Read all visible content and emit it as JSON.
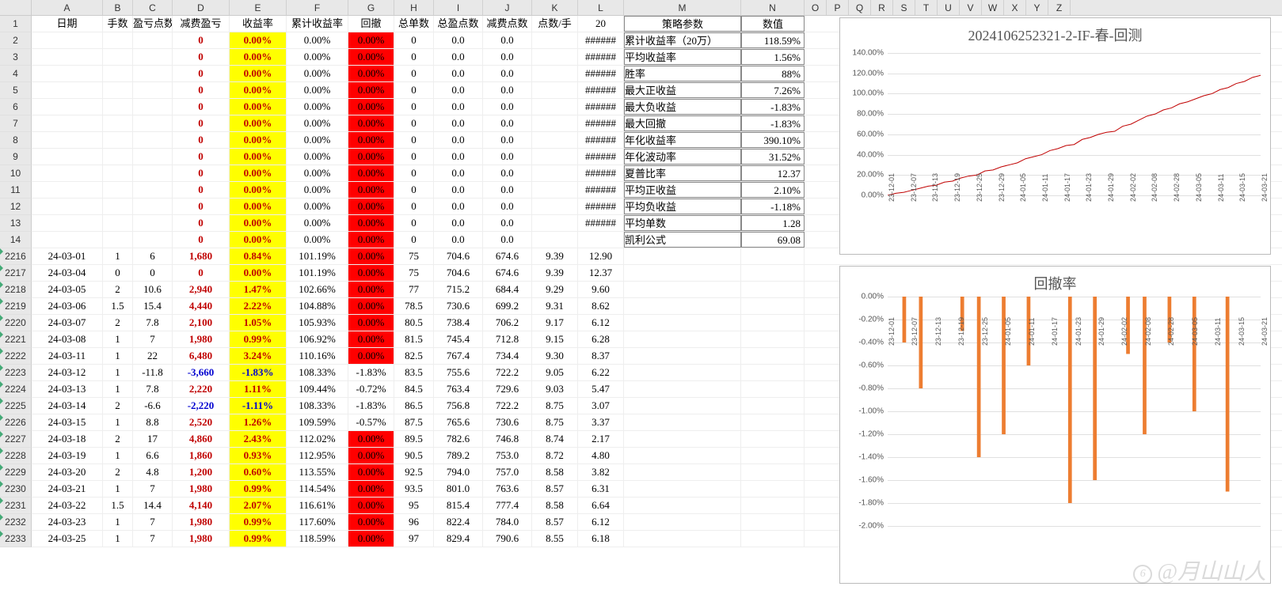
{
  "columns": [
    "A",
    "B",
    "C",
    "D",
    "E",
    "F",
    "G",
    "H",
    "I",
    "J",
    "K",
    "L",
    "M",
    "N",
    "O",
    "P",
    "Q",
    "R",
    "S",
    "T",
    "U",
    "V",
    "W",
    "X",
    "Y",
    "Z"
  ],
  "col_widths": {
    "A": 90,
    "B": 38,
    "C": 50,
    "D": 72,
    "E": 72,
    "F": 78,
    "G": 58,
    "H": 50,
    "I": 62,
    "J": 62,
    "K": 58,
    "L": 58,
    "M": 148,
    "N": 80
  },
  "headers": {
    "A": "日期",
    "B": "手数",
    "C": "盈亏点数",
    "D": "减费盈亏",
    "E": "收益率",
    "F": "累计收益率",
    "G": "回撤",
    "H": "总单数",
    "I": "总盈点数",
    "J": "减费点数",
    "K": "点数/手",
    "L": "20",
    "M": "策略参数",
    "N": "数值"
  },
  "top_rows": [
    {
      "n": 2,
      "L": "######",
      "M": "累计收益率（20万）",
      "N": "118.59%"
    },
    {
      "n": 3,
      "L": "######",
      "M": "平均收益率",
      "N": "1.56%"
    },
    {
      "n": 4,
      "L": "######",
      "M": "胜率",
      "N": "88%"
    },
    {
      "n": 5,
      "L": "######",
      "M": "最大正收益",
      "N": "7.26%"
    },
    {
      "n": 6,
      "L": "######",
      "M": "最大负收益",
      "N": "-1.83%"
    },
    {
      "n": 7,
      "L": "######",
      "M": "最大回撤",
      "N": "-1.83%"
    },
    {
      "n": 8,
      "L": "######",
      "M": "年化收益率",
      "N": "390.10%"
    },
    {
      "n": 9,
      "L": "######",
      "M": "年化波动率",
      "N": "31.52%"
    },
    {
      "n": 10,
      "L": "######",
      "M": "夏普比率",
      "N": "12.37"
    },
    {
      "n": 11,
      "L": "######",
      "M": "平均正收益",
      "N": "2.10%"
    },
    {
      "n": 12,
      "L": "######",
      "M": "平均负收益",
      "N": "-1.18%"
    },
    {
      "n": 13,
      "L": "######",
      "M": "平均单数",
      "N": "1.28"
    },
    {
      "n": 14,
      "L": "",
      "M": "凯利公式",
      "N": "69.08"
    }
  ],
  "top_defaults": {
    "D": "0",
    "E": "0.00%",
    "F": "0.00%",
    "G": "0.00%",
    "H": "0",
    "I": "0.0",
    "J": "0.0"
  },
  "data_rows": [
    {
      "n": 2216,
      "A": "24-03-01",
      "B": "1",
      "C": "6",
      "D": "1,680",
      "E": "0.84%",
      "F": "101.19%",
      "G": "0.00%",
      "Gred": true,
      "H": "75",
      "I": "704.6",
      "J": "674.6",
      "K": "9.39",
      "L": "12.90"
    },
    {
      "n": 2217,
      "A": "24-03-04",
      "B": "0",
      "C": "0",
      "D": "0",
      "E": "0.00%",
      "F": "101.19%",
      "G": "0.00%",
      "Gred": true,
      "H": "75",
      "I": "704.6",
      "J": "674.6",
      "K": "9.39",
      "L": "12.37"
    },
    {
      "n": 2218,
      "A": "24-03-05",
      "B": "2",
      "C": "10.6",
      "D": "2,940",
      "E": "1.47%",
      "F": "102.66%",
      "G": "0.00%",
      "Gred": true,
      "H": "77",
      "I": "715.2",
      "J": "684.4",
      "K": "9.29",
      "L": "9.60"
    },
    {
      "n": 2219,
      "A": "24-03-06",
      "B": "1.5",
      "C": "15.4",
      "D": "4,440",
      "E": "2.22%",
      "F": "104.88%",
      "G": "0.00%",
      "Gred": true,
      "H": "78.5",
      "I": "730.6",
      "J": "699.2",
      "K": "9.31",
      "L": "8.62"
    },
    {
      "n": 2220,
      "A": "24-03-07",
      "B": "2",
      "C": "7.8",
      "D": "2,100",
      "E": "1.05%",
      "F": "105.93%",
      "G": "0.00%",
      "Gred": true,
      "H": "80.5",
      "I": "738.4",
      "J": "706.2",
      "K": "9.17",
      "L": "6.12"
    },
    {
      "n": 2221,
      "A": "24-03-08",
      "B": "1",
      "C": "7",
      "D": "1,980",
      "E": "0.99%",
      "F": "106.92%",
      "G": "0.00%",
      "Gred": true,
      "H": "81.5",
      "I": "745.4",
      "J": "712.8",
      "K": "9.15",
      "L": "6.28"
    },
    {
      "n": 2222,
      "A": "24-03-11",
      "B": "1",
      "C": "22",
      "D": "6,480",
      "E": "3.24%",
      "F": "110.16%",
      "G": "0.00%",
      "Gred": true,
      "H": "82.5",
      "I": "767.4",
      "J": "734.4",
      "K": "9.30",
      "L": "8.37"
    },
    {
      "n": 2223,
      "A": "24-03-12",
      "B": "1",
      "C": "-11.8",
      "D": "-3,660",
      "Dneg": true,
      "E": "-1.83%",
      "F": "108.33%",
      "G": "-1.83%",
      "Gred": false,
      "H": "83.5",
      "I": "755.6",
      "J": "722.2",
      "K": "9.05",
      "L": "6.22"
    },
    {
      "n": 2224,
      "A": "24-03-13",
      "B": "1",
      "C": "7.8",
      "D": "2,220",
      "E": "1.11%",
      "F": "109.44%",
      "G": "-0.72%",
      "Gred": false,
      "H": "84.5",
      "I": "763.4",
      "J": "729.6",
      "K": "9.03",
      "L": "5.47"
    },
    {
      "n": 2225,
      "A": "24-03-14",
      "B": "2",
      "C": "-6.6",
      "D": "-2,220",
      "Dneg": true,
      "E": "-1.11%",
      "F": "108.33%",
      "G": "-1.83%",
      "Gred": false,
      "H": "86.5",
      "I": "756.8",
      "J": "722.2",
      "K": "8.75",
      "L": "3.07"
    },
    {
      "n": 2226,
      "A": "24-03-15",
      "B": "1",
      "C": "8.8",
      "D": "2,520",
      "E": "1.26%",
      "F": "109.59%",
      "G": "-0.57%",
      "Gred": false,
      "H": "87.5",
      "I": "765.6",
      "J": "730.6",
      "K": "8.75",
      "L": "3.37"
    },
    {
      "n": 2227,
      "A": "24-03-18",
      "B": "2",
      "C": "17",
      "D": "4,860",
      "E": "2.43%",
      "F": "112.02%",
      "G": "0.00%",
      "Gred": true,
      "H": "89.5",
      "I": "782.6",
      "J": "746.8",
      "K": "8.74",
      "L": "2.17"
    },
    {
      "n": 2228,
      "A": "24-03-19",
      "B": "1",
      "C": "6.6",
      "D": "1,860",
      "E": "0.93%",
      "F": "112.95%",
      "G": "0.00%",
      "Gred": true,
      "H": "90.5",
      "I": "789.2",
      "J": "753.0",
      "K": "8.72",
      "L": "4.80"
    },
    {
      "n": 2229,
      "A": "24-03-20",
      "B": "2",
      "C": "4.8",
      "D": "1,200",
      "E": "0.60%",
      "F": "113.55%",
      "G": "0.00%",
      "Gred": true,
      "H": "92.5",
      "I": "794.0",
      "J": "757.0",
      "K": "8.58",
      "L": "3.82"
    },
    {
      "n": 2230,
      "A": "24-03-21",
      "B": "1",
      "C": "7",
      "D": "1,980",
      "E": "0.99%",
      "F": "114.54%",
      "G": "0.00%",
      "Gred": true,
      "H": "93.5",
      "I": "801.0",
      "J": "763.6",
      "K": "8.57",
      "L": "6.31"
    },
    {
      "n": 2231,
      "A": "24-03-22",
      "B": "1.5",
      "C": "14.4",
      "D": "4,140",
      "E": "2.07%",
      "F": "116.61%",
      "G": "0.00%",
      "Gred": true,
      "H": "95",
      "I": "815.4",
      "J": "777.4",
      "K": "8.58",
      "L": "6.64"
    },
    {
      "n": 2232,
      "A": "24-03-23",
      "B": "1",
      "C": "7",
      "D": "1,980",
      "E": "0.99%",
      "F": "117.60%",
      "G": "0.00%",
      "Gred": true,
      "H": "96",
      "I": "822.4",
      "J": "784.0",
      "K": "8.57",
      "L": "6.12"
    },
    {
      "n": 2233,
      "A": "24-03-25",
      "B": "1",
      "C": "7",
      "D": "1,980",
      "E": "0.99%",
      "F": "118.59%",
      "G": "0.00%",
      "Gred": true,
      "H": "97",
      "I": "829.4",
      "J": "790.6",
      "K": "8.55",
      "L": "6.18"
    }
  ],
  "chart1": {
    "title": "2024106252321-2-IF-春-回测",
    "y_ticks": [
      "0.00%",
      "20.00%",
      "40.00%",
      "60.00%",
      "80.00%",
      "100.00%",
      "120.00%",
      "140.00%"
    ],
    "ylim": [
      0,
      140
    ],
    "x_labels": [
      "23-12-01",
      "23-12-07",
      "23-12-13",
      "23-12-19",
      "23-12-25",
      "23-12-29",
      "24-01-05",
      "24-01-11",
      "24-01-17",
      "24-01-23",
      "24-01-29",
      "24-02-02",
      "24-02-08",
      "24-02-28",
      "24-03-05",
      "24-03-11",
      "24-03-15",
      "24-03-21"
    ],
    "line_color": "#c00000",
    "series": [
      0,
      2,
      3,
      5,
      7,
      9,
      10,
      13,
      14,
      17,
      19,
      20,
      24,
      25,
      28,
      30,
      32,
      36,
      38,
      40,
      44,
      46,
      49,
      50,
      55,
      57,
      60,
      62,
      63,
      68,
      70,
      74,
      78,
      80,
      84,
      86,
      90,
      92,
      95,
      98,
      100,
      104,
      106,
      110,
      112,
      116,
      118
    ]
  },
  "chart2": {
    "title": "回撤率",
    "y_ticks": [
      "0.00%",
      "-0.20%",
      "-0.40%",
      "-0.60%",
      "-0.80%",
      "-1.00%",
      "-1.20%",
      "-1.40%",
      "-1.60%",
      "-1.80%",
      "-2.00%"
    ],
    "ylim": [
      0,
      -2.0
    ],
    "x_labels": [
      "23-12-01",
      "23-12-07",
      "23-12-13",
      "23-12-19",
      "23-12-25",
      "24-01-05",
      "24-01-11",
      "24-01-17",
      "24-01-23",
      "24-01-29",
      "24-02-02",
      "24-02-08",
      "24-02-28",
      "24-03-05",
      "24-03-11",
      "24-03-15",
      "24-03-21"
    ],
    "bar_color": "#ed7d31",
    "bars": [
      0,
      0,
      -0.4,
      0,
      -0.8,
      0,
      0,
      0,
      0,
      -0.3,
      0,
      -1.4,
      0,
      0,
      -1.2,
      0,
      0,
      -0.6,
      0,
      0,
      0,
      0,
      -1.8,
      0,
      0,
      -1.6,
      0,
      0,
      0,
      -0.5,
      0,
      -1.2,
      0,
      0,
      -0.4,
      0,
      0,
      -1.0,
      0,
      0,
      0,
      -1.7,
      0,
      0,
      0,
      0
    ]
  },
  "watermark": "@月山山人"
}
